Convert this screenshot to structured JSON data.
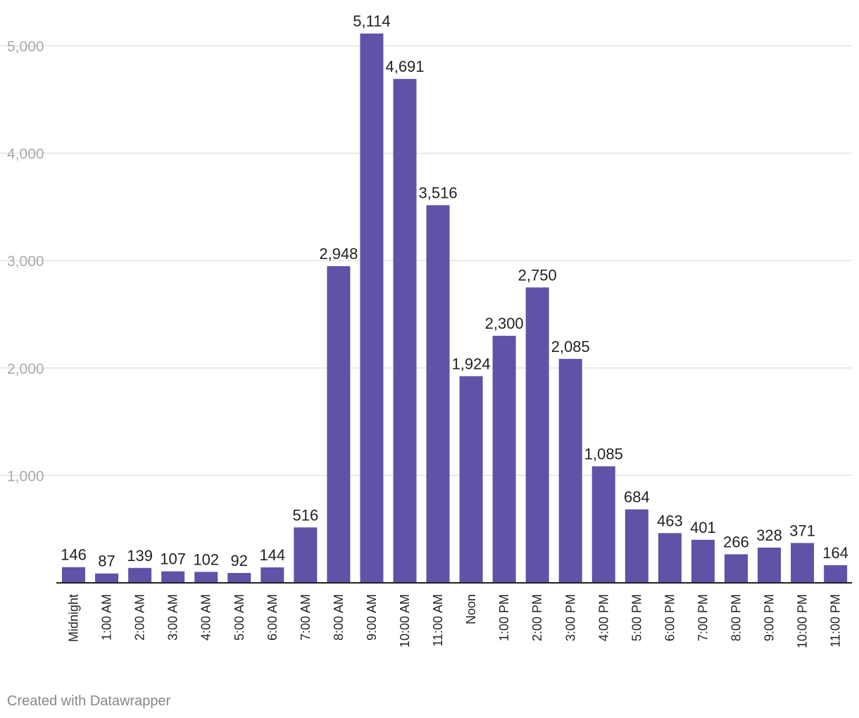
{
  "chart_data": {
    "type": "bar",
    "title": "",
    "xlabel": "",
    "ylabel": "",
    "ylim": [
      0,
      5000
    ],
    "yticks": [
      "1,000",
      "2,000",
      "3,000",
      "4,000",
      "5,000"
    ],
    "ytick_values": [
      1000,
      2000,
      3000,
      4000,
      5000
    ],
    "categories": [
      "Midnight",
      "1:00 AM",
      "2:00 AM",
      "3:00 AM",
      "4:00 AM",
      "5:00 AM",
      "6:00 AM",
      "7:00 AM",
      "8:00 AM",
      "9:00 AM",
      "10:00 AM",
      "11:00 AM",
      "Noon",
      "1:00 PM",
      "2:00 PM",
      "3:00 PM",
      "4:00 PM",
      "5:00 PM",
      "6:00 PM",
      "7:00 PM",
      "8:00 PM",
      "9:00 PM",
      "10:00 PM",
      "11:00 PM"
    ],
    "values": [
      146,
      87,
      139,
      107,
      102,
      92,
      144,
      516,
      2948,
      5114,
      4691,
      3516,
      1924,
      2300,
      2750,
      2085,
      1085,
      684,
      463,
      401,
      266,
      328,
      371,
      164
    ],
    "value_labels": [
      "146",
      "87",
      "139",
      "107",
      "102",
      "92",
      "144",
      "516",
      "2,948",
      "5,114",
      "4,691",
      "3,516",
      "1,924",
      "2,300",
      "2,750",
      "2,085",
      "1,085",
      "684",
      "463",
      "401",
      "266",
      "328",
      "371",
      "164"
    ],
    "bar_color": "#6052a6",
    "grid": true
  },
  "footer": {
    "credit": "Created with Datawrapper"
  }
}
